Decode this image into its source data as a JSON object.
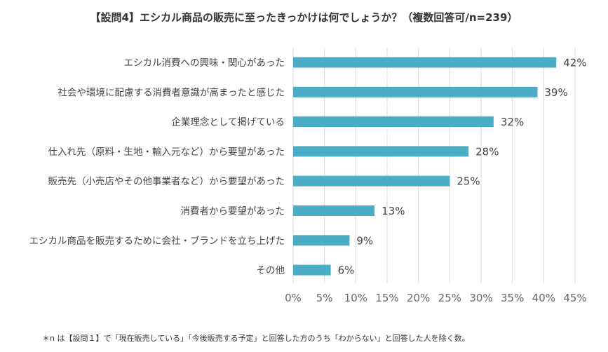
{
  "chart_data": {
    "type": "bar",
    "orientation": "horizontal",
    "title": "【設問4】エシカル商品の販売に至ったきっかけは何でしょうか？（複数回答可/n=239）",
    "categories": [
      "エシカル消費への興味・関心があった",
      "社会や環境に配慮する消費者意識が高まったと感じた",
      "企業理念として掲げている",
      "仕入れ先（原料・生地・輸入元など）から要望があった",
      "販売先（小売店やその他事業者など）から要望があった",
      "消費者から要望があった",
      "エシカル商品を販売するために会社・ブランドを立ち上げた",
      "その他"
    ],
    "values": [
      42,
      39,
      32,
      28,
      25,
      13,
      9,
      6
    ],
    "value_labels": [
      "42%",
      "39%",
      "32%",
      "28%",
      "25%",
      "13%",
      "9%",
      "6%"
    ],
    "x_ticks": [
      0,
      5,
      10,
      15,
      20,
      25,
      30,
      35,
      40,
      45
    ],
    "x_tick_labels": [
      "0%",
      "5%",
      "10%",
      "15%",
      "20%",
      "25%",
      "30%",
      "35%",
      "40%",
      "45%"
    ],
    "xlim": [
      0,
      45
    ],
    "xlabel": "",
    "ylabel": "",
    "grid": true,
    "legend": "none",
    "bar_color": "#4bacc6",
    "grid_color": "#d9d9d9"
  },
  "footnote": "＊n は【設問１】で「現在販売している」「今後販売する予定」と回答した方のうち「わからない」と回答した人を除く数。"
}
